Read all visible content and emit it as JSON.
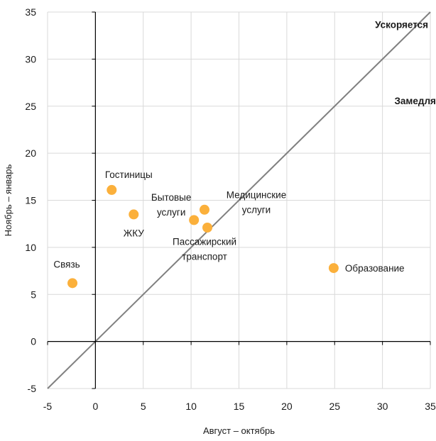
{
  "chart_data": {
    "type": "scatter",
    "xlabel": "Август – октябрь",
    "ylabel": "Ноябрь – январь",
    "xlim": [
      -5,
      35
    ],
    "ylim": [
      -5,
      35
    ],
    "xticks": [
      -5,
      0,
      5,
      10,
      15,
      20,
      25,
      30,
      35
    ],
    "yticks": [
      -5,
      0,
      5,
      10,
      15,
      20,
      25,
      30,
      35
    ],
    "grid": true,
    "diagonal_line": "y = x",
    "colors": {
      "point": "#fbb03b",
      "diagonal": "#808080",
      "grid": "#d9d9d9",
      "zero_axis": "#000000"
    },
    "annotations": [
      {
        "text": "Ускоряется",
        "x": 32.0,
        "y": 33.7
      },
      {
        "text": "Замедляется",
        "x": 34.5,
        "y": 25.6
      }
    ],
    "points": [
      {
        "label": [
          "Связь"
        ],
        "x": -2.4,
        "y": 6.2
      },
      {
        "label": [
          "Гостиницы"
        ],
        "x": 1.7,
        "y": 16.1
      },
      {
        "label": [
          "ЖКУ"
        ],
        "x": 4.0,
        "y": 13.5
      },
      {
        "label": [
          "Бытовые",
          "услуги"
        ],
        "x": 10.3,
        "y": 12.9
      },
      {
        "label": [
          "Медицинские",
          "услуги"
        ],
        "x": 11.4,
        "y": 14.0
      },
      {
        "label": [
          "Пассажирский",
          "транспорт"
        ],
        "x": 11.7,
        "y": 12.1
      },
      {
        "label": [
          "Образование"
        ],
        "x": 24.9,
        "y": 7.8
      }
    ]
  }
}
